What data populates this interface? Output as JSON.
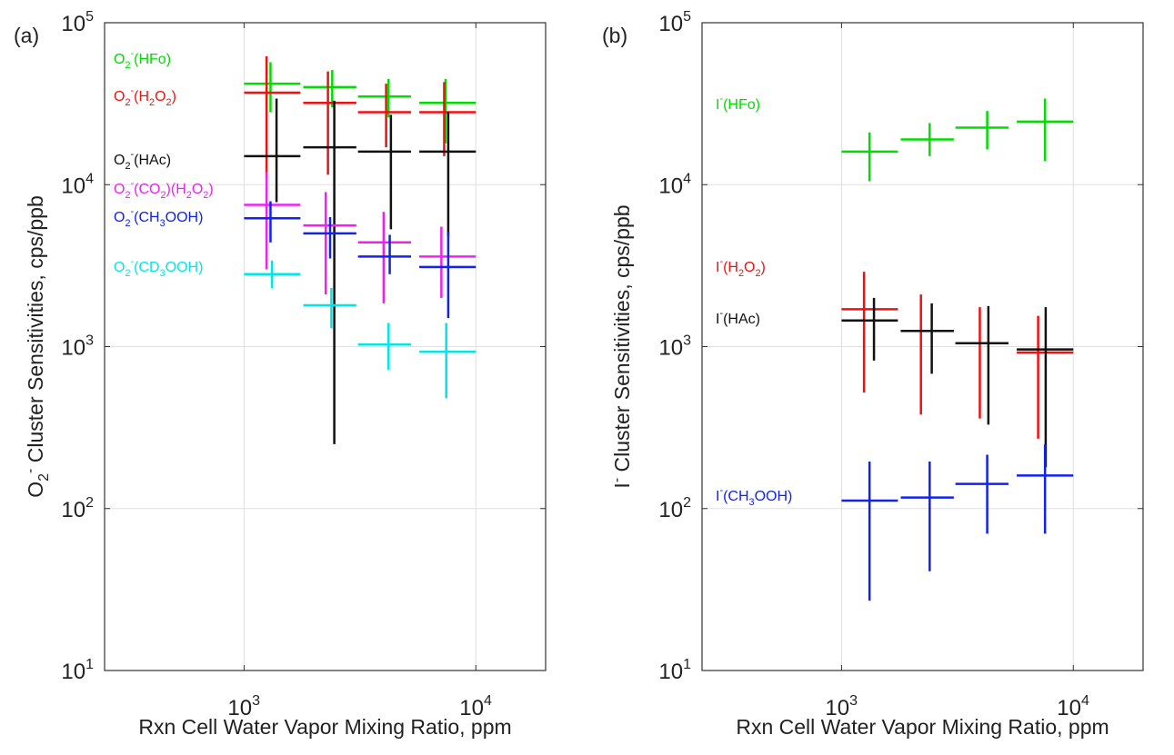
{
  "chart_data": [
    {
      "type": "scatter",
      "panel_label": "(a)",
      "xlabel": "Rxn Cell Water Vapor Mixing Ratio, ppm",
      "ylabel": "O2⁻ Cluster Sensitivities, cps/ppb",
      "ylabel_parts": {
        "pre": "O",
        "sub": "2",
        "sup": "-",
        "post": " Cluster Sensitivities, cps/ppb"
      },
      "x_scale": "log",
      "y_scale": "log",
      "xlim": [
        250,
        20000
      ],
      "ylim": [
        10,
        100000
      ],
      "xticks": [
        1000,
        10000
      ],
      "yticks": [
        10,
        100,
        1000,
        10000,
        100000
      ],
      "xtick_labels": [
        {
          "base": "10",
          "exp": "3"
        },
        {
          "base": "10",
          "exp": "4"
        }
      ],
      "ytick_labels": [
        {
          "base": "10",
          "exp": "1"
        },
        {
          "base": "10",
          "exp": "2"
        },
        {
          "base": "10",
          "exp": "3"
        },
        {
          "base": "10",
          "exp": "4"
        },
        {
          "base": "10",
          "exp": "5"
        }
      ],
      "grid": true,
      "legend_placement": "left, inline text labels",
      "series": [
        {
          "name": "O2⁻(HFo)",
          "color": "#00dd00",
          "label_parts": [
            [
              "n",
              "O"
            ],
            [
              "sub",
              "2"
            ],
            [
              "sup",
              "-"
            ],
            [
              "n",
              "(HFo)"
            ]
          ],
          "points": [
            {
              "x": 1300,
              "xerr": [
                1000,
                1750
              ],
              "y": 42000,
              "yerr": [
                28000,
                57000
              ]
            },
            {
              "x": 2400,
              "xerr": [
                1800,
                3050
              ],
              "y": 40000,
              "yerr": [
                30000,
                51000
              ]
            },
            {
              "x": 4200,
              "xerr": [
                3100,
                5250
              ],
              "y": 35000,
              "yerr": [
                26000,
                45000
              ]
            },
            {
              "x": 7400,
              "xerr": [
                5700,
                10000
              ],
              "y": 32000,
              "yerr": [
                18000,
                45000
              ]
            }
          ]
        },
        {
          "name": "O2⁻(H2O2)",
          "color": "#ee1111",
          "label_parts": [
            [
              "n",
              "O"
            ],
            [
              "sub",
              "2"
            ],
            [
              "sup",
              "-"
            ],
            [
              "n",
              "(H"
            ],
            [
              "sub",
              "2"
            ],
            [
              "n",
              "O"
            ],
            [
              "sub",
              "2"
            ],
            [
              "n",
              ")"
            ]
          ],
          "points": [
            {
              "x": 1250,
              "xerr": [
                1000,
                1750
              ],
              "y": 37000,
              "yerr": [
                11000,
                62000
              ]
            },
            {
              "x": 2300,
              "xerr": [
                1800,
                3050
              ],
              "y": 32000,
              "yerr": [
                11500,
                50000
              ]
            },
            {
              "x": 4100,
              "xerr": [
                3100,
                5250
              ],
              "y": 28000,
              "yerr": [
                17000,
                42000
              ]
            },
            {
              "x": 7300,
              "xerr": [
                5700,
                10000
              ],
              "y": 28000,
              "yerr": [
                15000,
                43000
              ]
            }
          ]
        },
        {
          "name": "O2⁻(HAc)",
          "color": "#111111",
          "label_parts": [
            [
              "n",
              "O"
            ],
            [
              "sub",
              "2"
            ],
            [
              "sup",
              "-"
            ],
            [
              "n",
              "(HAc)"
            ]
          ],
          "points": [
            {
              "x": 1380,
              "xerr": [
                1000,
                1750
              ],
              "y": 15000,
              "yerr": [
                7800,
                34000
              ]
            },
            {
              "x": 2450,
              "xerr": [
                1800,
                3050
              ],
              "y": 17000,
              "yerr": [
                250,
                33000
              ]
            },
            {
              "x": 4300,
              "xerr": [
                3100,
                5250
              ],
              "y": 16000,
              "yerr": [
                5300,
                27000
              ]
            },
            {
              "x": 7600,
              "xerr": [
                5700,
                10000
              ],
              "y": 16000,
              "yerr": [
                4800,
                28000
              ]
            }
          ]
        },
        {
          "name": "O2⁻(CO2)(H2O2)",
          "color": "#ee22ee",
          "label_parts": [
            [
              "n",
              "O"
            ],
            [
              "sub",
              "2"
            ],
            [
              "sup",
              "-"
            ],
            [
              "n",
              "(CO"
            ],
            [
              "sub",
              "2"
            ],
            [
              "n",
              ")(H"
            ],
            [
              "sub",
              "2"
            ],
            [
              "n",
              "O"
            ],
            [
              "sub",
              "2"
            ],
            [
              "n",
              ")"
            ]
          ],
          "points": [
            {
              "x": 1250,
              "xerr": [
                1000,
                1750
              ],
              "y": 7500,
              "yerr": [
                3000,
                12000
              ]
            },
            {
              "x": 2250,
              "xerr": [
                1800,
                3050
              ],
              "y": 5600,
              "yerr": [
                2100,
                9000
              ]
            },
            {
              "x": 4000,
              "xerr": [
                3100,
                5250
              ],
              "y": 4400,
              "yerr": [
                1850,
                6800
              ]
            },
            {
              "x": 7100,
              "xerr": [
                5700,
                10000
              ],
              "y": 3600,
              "yerr": [
                2000,
                5500
              ]
            }
          ]
        },
        {
          "name": "O2⁻(CH3OOH)",
          "color": "#1122ee",
          "label_parts": [
            [
              "n",
              "O"
            ],
            [
              "sub",
              "2"
            ],
            [
              "sup",
              "-"
            ],
            [
              "n",
              "(CH"
            ],
            [
              "sub",
              "3"
            ],
            [
              "n",
              "OOH)"
            ]
          ],
          "points": [
            {
              "x": 1300,
              "xerr": [
                1000,
                1750
              ],
              "y": 6200,
              "yerr": [
                4400,
                7900
              ]
            },
            {
              "x": 2350,
              "xerr": [
                1800,
                3050
              ],
              "y": 5000,
              "yerr": [
                3500,
                6300
              ]
            },
            {
              "x": 4250,
              "xerr": [
                3100,
                5250
              ],
              "y": 3600,
              "yerr": [
                2800,
                4900
              ]
            },
            {
              "x": 7600,
              "xerr": [
                5700,
                10000
              ],
              "y": 3100,
              "yerr": [
                1500,
                5100
              ]
            }
          ]
        },
        {
          "name": "O2⁻(CD3OOH)",
          "color": "#00e6e6",
          "label_parts": [
            [
              "n",
              "O"
            ],
            [
              "sub",
              "2"
            ],
            [
              "sup",
              "-"
            ],
            [
              "n",
              "(CD"
            ],
            [
              "sub",
              "3"
            ],
            [
              "n",
              "OOH)"
            ]
          ],
          "points": [
            {
              "x": 1320,
              "xerr": [
                1000,
                1750
              ],
              "y": 2800,
              "yerr": [
                2300,
                3400
              ]
            },
            {
              "x": 2380,
              "xerr": [
                1800,
                3050
              ],
              "y": 1800,
              "yerr": [
                1300,
                2300
              ]
            },
            {
              "x": 4200,
              "xerr": [
                3100,
                5250
              ],
              "y": 1030,
              "yerr": [
                720,
                1400
              ]
            },
            {
              "x": 7450,
              "xerr": [
                5700,
                10000
              ],
              "y": 930,
              "yerr": [
                480,
                1400
              ]
            }
          ]
        }
      ]
    },
    {
      "type": "scatter",
      "panel_label": "(b)",
      "xlabel": "Rxn Cell Water Vapor Mixing Ratio, ppm",
      "ylabel": "I⁻ Cluster Sensitivities, cps/ppb",
      "ylabel_parts": {
        "pre": "I",
        "sub": "",
        "sup": "-",
        "post": " Cluster Sensitivities, cps/ppb"
      },
      "x_scale": "log",
      "y_scale": "log",
      "xlim": [
        250,
        20000
      ],
      "ylim": [
        10,
        100000
      ],
      "xticks": [
        1000,
        10000
      ],
      "yticks": [
        10,
        100,
        1000,
        10000,
        100000
      ],
      "xtick_labels": [
        {
          "base": "10",
          "exp": "3"
        },
        {
          "base": "10",
          "exp": "4"
        }
      ],
      "ytick_labels": [
        {
          "base": "10",
          "exp": "1"
        },
        {
          "base": "10",
          "exp": "2"
        },
        {
          "base": "10",
          "exp": "3"
        },
        {
          "base": "10",
          "exp": "4"
        },
        {
          "base": "10",
          "exp": "5"
        }
      ],
      "grid": true,
      "legend_placement": "left, inline text labels",
      "series": [
        {
          "name": "I⁻(HFo)",
          "color": "#00dd00",
          "label_parts": [
            [
              "n",
              "I"
            ],
            [
              "sup",
              "-"
            ],
            [
              "n",
              "(HFo)"
            ]
          ],
          "points": [
            {
              "x": 1320,
              "xerr": [
                1000,
                1750
              ],
              "y": 16000,
              "yerr": [
                10500,
                21000
              ]
            },
            {
              "x": 2400,
              "xerr": [
                1800,
                3050
              ],
              "y": 19000,
              "yerr": [
                15000,
                24000
              ]
            },
            {
              "x": 4250,
              "xerr": [
                3100,
                5250
              ],
              "y": 22500,
              "yerr": [
                16500,
                28500
              ]
            },
            {
              "x": 7550,
              "xerr": [
                5700,
                10000
              ],
              "y": 24500,
              "yerr": [
                14000,
                34000
              ]
            }
          ]
        },
        {
          "name": "I⁻(H2O2)",
          "color": "#ee1111",
          "label_parts": [
            [
              "n",
              "I"
            ],
            [
              "sup",
              "-"
            ],
            [
              "n",
              "(H"
            ],
            [
              "sub",
              "2"
            ],
            [
              "n",
              "O"
            ],
            [
              "sub",
              "2"
            ],
            [
              "n",
              ")"
            ]
          ],
          "points": [
            {
              "x": 1250,
              "xerr": [
                1000,
                1750
              ],
              "y": 1700,
              "yerr": [
                520,
                2900
              ]
            },
            {
              "x": 2200,
              "xerr": [
                1800,
                3050
              ],
              "y": 1250,
              "yerr": [
                380,
                2100
              ]
            },
            {
              "x": 3950,
              "xerr": [
                3100,
                5250
              ],
              "y": 1050,
              "yerr": [
                360,
                1750
              ]
            },
            {
              "x": 7050,
              "xerr": [
                5700,
                10000
              ],
              "y": 920,
              "yerr": [
                270,
                1550
              ]
            }
          ]
        },
        {
          "name": "I⁻(HAc)",
          "color": "#111111",
          "label_parts": [
            [
              "n",
              "I"
            ],
            [
              "sup",
              "-"
            ],
            [
              "n",
              "(HAc)"
            ]
          ],
          "points": [
            {
              "x": 1380,
              "xerr": [
                1000,
                1750
              ],
              "y": 1450,
              "yerr": [
                820,
                2000
              ]
            },
            {
              "x": 2450,
              "xerr": [
                1800,
                3050
              ],
              "y": 1250,
              "yerr": [
                680,
                1850
              ]
            },
            {
              "x": 4300,
              "xerr": [
                3100,
                5250
              ],
              "y": 1050,
              "yerr": [
                330,
                1780
              ]
            },
            {
              "x": 7600,
              "xerr": [
                5700,
                10000
              ],
              "y": 960,
              "yerr": [
                180,
                1750
              ]
            }
          ]
        },
        {
          "name": "I⁻(CH3OOH)",
          "color": "#1122ee",
          "label_parts": [
            [
              "n",
              "I"
            ],
            [
              "sup",
              "-"
            ],
            [
              "n",
              "(CH"
            ],
            [
              "sub",
              "3"
            ],
            [
              "n",
              "OOH)"
            ]
          ],
          "points": [
            {
              "x": 1320,
              "xerr": [
                1000,
                1750
              ],
              "y": 112,
              "yerr": [
                27,
                195
              ]
            },
            {
              "x": 2400,
              "xerr": [
                1800,
                3050
              ],
              "y": 117,
              "yerr": [
                41,
                195
              ]
            },
            {
              "x": 4250,
              "xerr": [
                3100,
                5250
              ],
              "y": 142,
              "yerr": [
                70,
                215
              ]
            },
            {
              "x": 7550,
              "xerr": [
                5700,
                10000
              ],
              "y": 160,
              "yerr": [
                70,
                250
              ]
            }
          ]
        }
      ]
    }
  ]
}
